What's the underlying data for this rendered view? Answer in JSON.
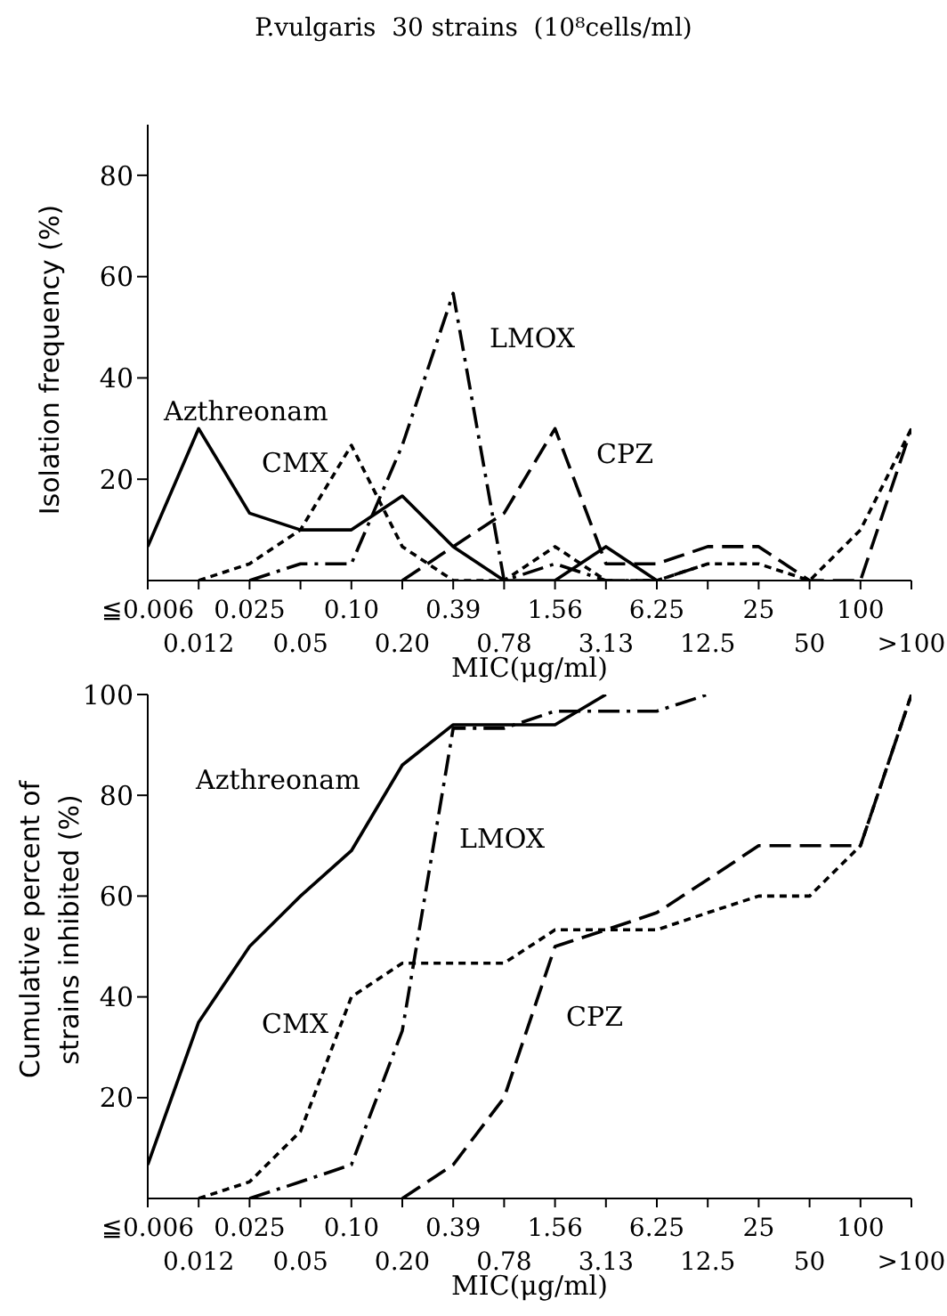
{
  "chart_data": [
    {
      "type": "line",
      "title": "P.vulgaris  30 strains  (10⁸cells/ml)",
      "xlabel": "MIC(μg/ml)",
      "ylabel": "Isolation frequency (%)",
      "categories": [
        "≦0.006",
        "0.012",
        "0.025",
        "0.05",
        "0.10",
        "0.20",
        "0.39",
        "0.78",
        "1.56",
        "3.13",
        "6.25",
        "12.5",
        "25",
        "50",
        "100",
        ">100"
      ],
      "ylim": [
        0,
        90
      ],
      "yticks": [
        20,
        40,
        60,
        80
      ],
      "marker": "none",
      "series": [
        {
          "name": "Azthreonam",
          "color": "#000000",
          "line_style": "solid",
          "values": [
            6.7,
            30,
            13.3,
            10,
            10,
            16.7,
            6.7,
            0,
            0,
            6.7,
            0,
            null,
            null,
            null,
            null,
            null
          ]
        },
        {
          "name": "CMX",
          "color": "#000000",
          "line_style": "dotted",
          "values": [
            null,
            0,
            3.3,
            10,
            26.7,
            6.7,
            0,
            0,
            6.7,
            0,
            0,
            3.3,
            3.3,
            0,
            10,
            30
          ]
        },
        {
          "name": "LMOX",
          "color": "#000000",
          "line_style": "dashdot",
          "values": [
            null,
            null,
            0,
            3.3,
            3.3,
            26.7,
            56.7,
            0,
            3.3,
            0,
            0,
            3.3,
            null,
            null,
            null,
            null
          ]
        },
        {
          "name": "CPZ",
          "color": "#000000",
          "line_style": "dashed",
          "values": [
            null,
            null,
            null,
            null,
            null,
            0,
            6.7,
            13.3,
            30,
            3.3,
            3.3,
            6.7,
            6.7,
            0,
            0,
            30
          ]
        }
      ]
    },
    {
      "type": "line",
      "xlabel": "MIC(μg/ml)",
      "ylabel": "Cumulative percent of strains inhibited (%)",
      "categories": [
        "≦0.006",
        "0.012",
        "0.025",
        "0.05",
        "0.10",
        "0.20",
        "0.39",
        "0.78",
        "1.56",
        "3.13",
        "6.25",
        "12.5",
        "25",
        "50",
        "100",
        ">100"
      ],
      "ylim": [
        0,
        100
      ],
      "yticks": [
        20,
        40,
        60,
        80,
        100
      ],
      "marker": "none",
      "series": [
        {
          "name": "Azthreonam",
          "color": "#000000",
          "line_style": "solid",
          "values": [
            6.7,
            35,
            50,
            60,
            69,
            86,
            94,
            94,
            94,
            100,
            null,
            null,
            null,
            null,
            null,
            null
          ]
        },
        {
          "name": "CMX",
          "color": "#000000",
          "line_style": "dotted",
          "values": [
            null,
            0,
            3.3,
            13.3,
            40,
            46.7,
            46.7,
            46.7,
            53.3,
            53.3,
            53.3,
            56.7,
            60,
            60,
            70,
            100
          ]
        },
        {
          "name": "LMOX",
          "color": "#000000",
          "line_style": "dashdot",
          "values": [
            null,
            null,
            0,
            3.3,
            6.7,
            33.3,
            93.3,
            93.3,
            96.7,
            96.7,
            96.7,
            100,
            null,
            null,
            null,
            null
          ]
        },
        {
          "name": "CPZ",
          "color": "#000000",
          "line_style": "dashed",
          "values": [
            null,
            null,
            null,
            null,
            null,
            0,
            6.7,
            20,
            50,
            53.3,
            56.7,
            63.3,
            70,
            70,
            70,
            100
          ]
        }
      ]
    }
  ]
}
